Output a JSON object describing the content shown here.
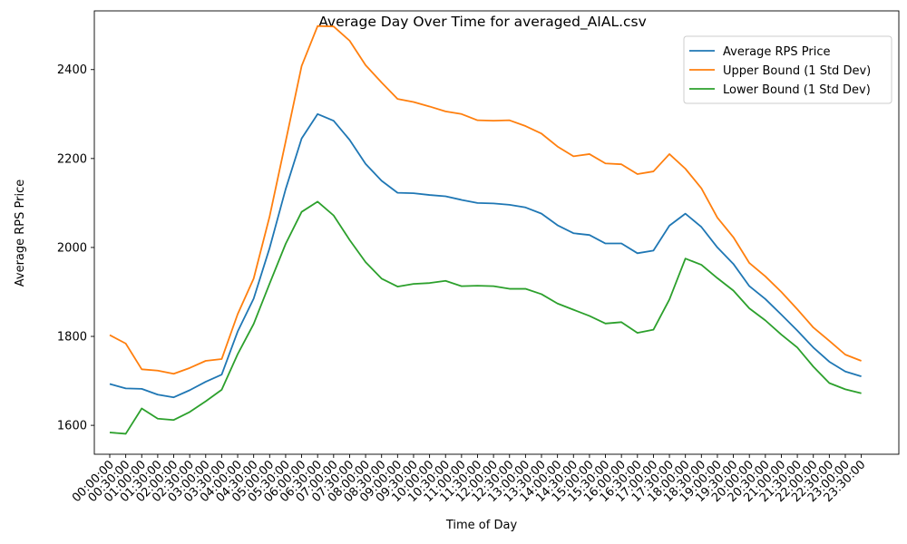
{
  "chart_data": {
    "type": "line",
    "title": "Average Day Over Time for averaged_AIAL.csv",
    "xlabel": "Time of Day",
    "ylabel": "Average RPS Price",
    "ylim": [
      1535,
      2532
    ],
    "yticks": [
      1600,
      1800,
      2000,
      2200,
      2400
    ],
    "grid": false,
    "legend_position": "top-right",
    "categories": [
      "00:00:00",
      "00:30:00",
      "01:00:00",
      "01:30:00",
      "02:00:00",
      "02:30:00",
      "03:00:00",
      "03:30:00",
      "04:00:00",
      "04:30:00",
      "05:00:00",
      "05:30:00",
      "06:00:00",
      "06:30:00",
      "07:00:00",
      "07:30:00",
      "08:00:00",
      "08:30:00",
      "09:00:00",
      "09:30:00",
      "10:00:00",
      "10:30:00",
      "11:00:00",
      "11:30:00",
      "12:00:00",
      "12:30:00",
      "13:00:00",
      "13:30:00",
      "14:00:00",
      "14:30:00",
      "15:00:00",
      "15:30:00",
      "16:00:00",
      "16:30:00",
      "17:00:00",
      "17:30:00",
      "18:00:00",
      "18:30:00",
      "19:00:00",
      "19:30:00",
      "20:00:00",
      "20:30:00",
      "21:00:00",
      "21:30:00",
      "22:00:00",
      "22:30:00",
      "23:00:00",
      "23:30:00"
    ],
    "series": [
      {
        "name": "Average RPS Price",
        "color": "#1f77b4",
        "values": [
          1693,
          1683,
          1682,
          1669,
          1663,
          1679,
          1698,
          1714,
          1811,
          1885,
          1999,
          2131,
          2245,
          2300,
          2285,
          2242,
          2188,
          2150,
          2123,
          2122,
          2118,
          2115,
          2107,
          2100,
          2099,
          2096,
          2090,
          2076,
          2050,
          2032,
          2028,
          2009,
          2009,
          1987,
          1993,
          2049,
          2076,
          2046,
          2000,
          1963,
          1913,
          1884,
          1849,
          1813,
          1775,
          1743,
          1721,
          1710
        ]
      },
      {
        "name": "Upper Bound (1 Std Dev)",
        "color": "#ff7f0e",
        "values": [
          1803,
          1784,
          1726,
          1723,
          1716,
          1729,
          1745,
          1749,
          1850,
          1930,
          2070,
          2238,
          2408,
          2498,
          2497,
          2465,
          2410,
          2371,
          2334,
          2327,
          2317,
          2306,
          2300,
          2286,
          2285,
          2286,
          2273,
          2256,
          2227,
          2205,
          2210,
          2189,
          2187,
          2165,
          2171,
          2210,
          2177,
          2133,
          2067,
          2023,
          1965,
          1935,
          1900,
          1861,
          1820,
          1790,
          1759,
          1745
        ]
      },
      {
        "name": "Lower Bound (1 Std Dev)",
        "color": "#2ca02c",
        "values": [
          1584,
          1581,
          1638,
          1615,
          1612,
          1630,
          1654,
          1680,
          1760,
          1828,
          1919,
          2008,
          2080,
          2103,
          2072,
          2017,
          1967,
          1930,
          1912,
          1918,
          1920,
          1925,
          1913,
          1914,
          1913,
          1907,
          1907,
          1895,
          1874,
          1860,
          1846,
          1829,
          1832,
          1808,
          1815,
          1883,
          1975,
          1961,
          1931,
          1903,
          1863,
          1836,
          1804,
          1775,
          1732,
          1695,
          1681,
          1672
        ]
      }
    ]
  }
}
